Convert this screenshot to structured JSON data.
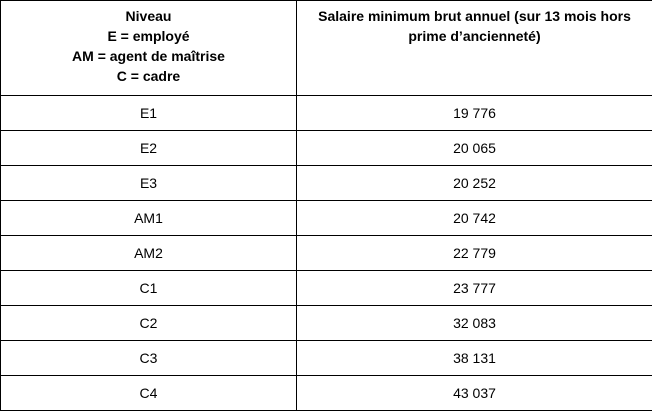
{
  "table": {
    "header": {
      "level": "Niveau\nE = employé\nAM = agent de maîtrise\nC = cadre",
      "salary": "Salaire minimum brut annuel (sur 13 mois hors prime d’ancienneté)"
    },
    "rows": [
      {
        "level": "E1",
        "salary": "19 776"
      },
      {
        "level": "E2",
        "salary": "20 065"
      },
      {
        "level": "E3",
        "salary": "20 252"
      },
      {
        "level": "AM1",
        "salary": "20 742"
      },
      {
        "level": "AM2",
        "salary": "22 779"
      },
      {
        "level": "C1",
        "salary": "23 777"
      },
      {
        "level": "C2",
        "salary": "32 083"
      },
      {
        "level": "C3",
        "salary": "38 131"
      },
      {
        "level": "C4",
        "salary": "43 037"
      }
    ],
    "colors": {
      "border": "#000000",
      "text": "#000000",
      "background": "#ffffff"
    }
  }
}
